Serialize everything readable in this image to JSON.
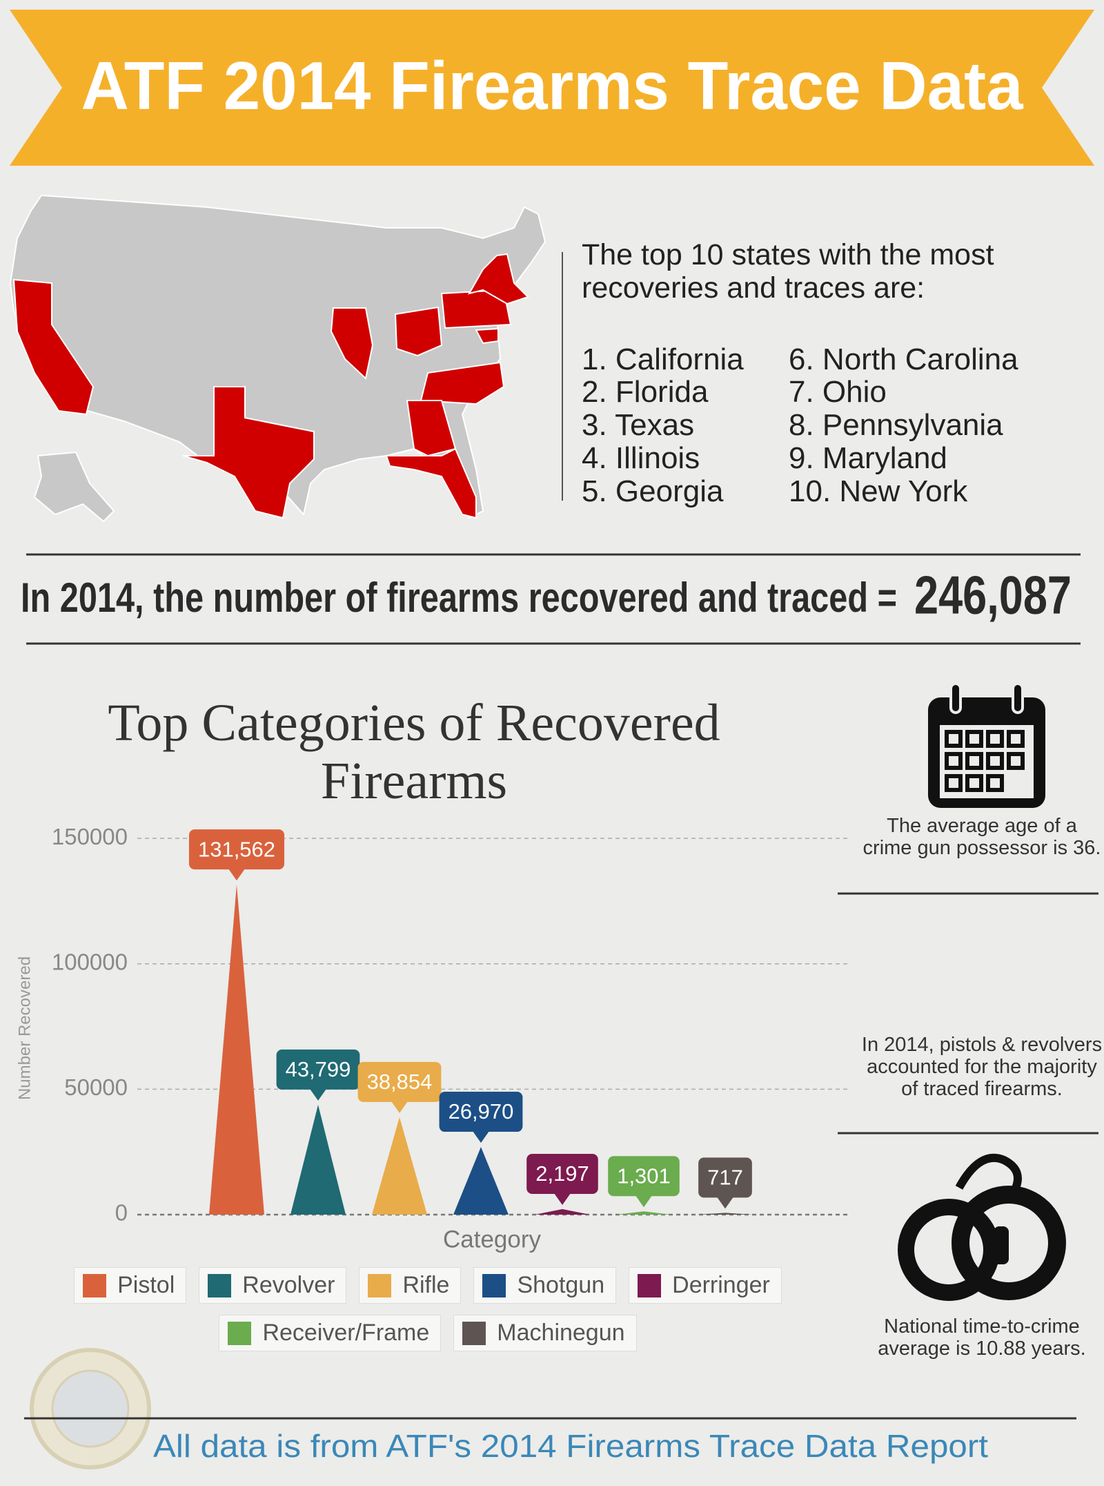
{
  "header": {
    "title": "ATF 2014 Firearms Trace Data"
  },
  "top_states": {
    "intro": "The top 10 states with the most recoveries and traces are:",
    "items": [
      "1. California",
      "2. Florida",
      "3. Texas",
      "4. Illinois",
      "5. Georgia",
      "6. North Carolina",
      "7. Ohio",
      "8. Pennsylvania",
      "9. Maryland",
      "10. New York"
    ]
  },
  "total": {
    "text": "In 2014, the number of firearms recovered and traced =",
    "value": "246,087"
  },
  "chart_data": {
    "type": "bar",
    "title": "Top Categories of Recovered Firearms",
    "categories": [
      "Pistol",
      "Revolver",
      "Rifle",
      "Shotgun",
      "Derringer",
      "Receiver/Frame",
      "Machinegun"
    ],
    "values": [
      131562,
      43799,
      38854,
      26970,
      2197,
      1301,
      717
    ],
    "value_labels": [
      "131,562",
      "43,799",
      "38,854",
      "26,970",
      "2,197",
      "1,301",
      "717"
    ],
    "colors": [
      "#d9623d",
      "#1f6a73",
      "#e8ac4a",
      "#1c4f86",
      "#7d1a4f",
      "#6aac4e",
      "#5e5552"
    ],
    "xlabel": "Category",
    "ylabel": "Number Recovered",
    "ylim": [
      0,
      155000
    ],
    "yticks": [
      0,
      50000,
      100000,
      150000
    ],
    "grid": true,
    "legend": "bottom"
  },
  "notes": [
    "The average age of a crime gun possessor is 36.",
    "In 2014, pistols & revolvers accounted for the majority of traced firearms.",
    "National time-to-crime average is 10.88 years."
  ],
  "footer": "All data is from ATF's 2014 Firearms Trace Data Report"
}
